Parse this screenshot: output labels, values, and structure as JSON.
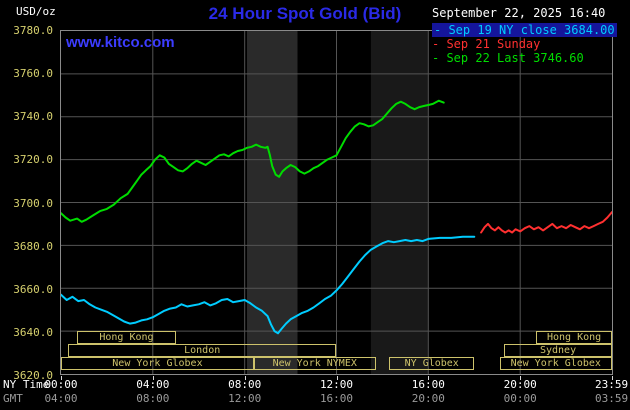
{
  "header": {
    "units_label": "USD/oz",
    "title": "24 Hour Spot Gold (Bid)",
    "datetime": "September 22, 2025 16:40",
    "watermark": "www.kitco.com"
  },
  "colors": {
    "background": "#000000",
    "title_blue": "#2a2ae6",
    "watermark_blue": "#3c3cff",
    "axis_yellow": "#d6d06e",
    "session_yellow": "#cdc26b",
    "grid_gray": "#545454",
    "border_gray": "#8a8a8a",
    "white_text": "#ffffff",
    "gmt_gray": "#9a9a9a",
    "legend_highlight": "#15159b",
    "series_cyan": "#00ccff",
    "series_red": "#ff3030",
    "series_green": "#00dd00"
  },
  "legend": [
    {
      "id": "sep19",
      "label": "Sep 19 NY close 3684.00",
      "color": "#00ccff",
      "highlight": true
    },
    {
      "id": "sep21",
      "label": "Sep 21 Sunday",
      "color": "#ff3030",
      "highlight": false
    },
    {
      "id": "sep22",
      "label": "Sep 22 Last 3746.60",
      "color": "#00dd00",
      "highlight": false
    }
  ],
  "axes": {
    "ny_time_label": "NY Time",
    "gmt_label": "GMT",
    "y_ticks": [
      "3780.0",
      "3760.0",
      "3740.0",
      "3720.0",
      "3700.0",
      "3680.0",
      "3660.0",
      "3640.0",
      "3620.0"
    ],
    "x_ticks": [
      {
        "h": 0,
        "ny": "00:00",
        "gmt": "04:00"
      },
      {
        "h": 4,
        "ny": "04:00",
        "gmt": "08:00"
      },
      {
        "h": 8,
        "ny": "08:00",
        "gmt": "12:00"
      },
      {
        "h": 12,
        "ny": "12:00",
        "gmt": "16:00"
      },
      {
        "h": 16,
        "ny": "16:00",
        "gmt": "20:00"
      },
      {
        "h": 20,
        "ny": "20:00",
        "gmt": "00:00"
      },
      {
        "h": 23.983,
        "ny": "23:59",
        "gmt": "03:59"
      }
    ]
  },
  "sessions": [
    {
      "label": "Hong Kong",
      "row": 0,
      "start": 0.7,
      "end": 5.0
    },
    {
      "label": "Hong Kong",
      "row": 0,
      "start": 20.7,
      "end": 24.0
    },
    {
      "label": "London",
      "row": 1,
      "start": 0.3,
      "end": 12.0
    },
    {
      "label": "Sydney",
      "row": 1,
      "start": 19.3,
      "end": 24.0
    },
    {
      "label": "New York Globex",
      "row": 2,
      "start": 0.0,
      "end": 8.4
    },
    {
      "label": "New York NYMEX",
      "row": 2,
      "start": 8.4,
      "end": 13.7
    },
    {
      "label": "NY Globex",
      "row": 2,
      "start": 14.3,
      "end": 18.0
    },
    {
      "label": "New York Globex",
      "row": 2,
      "start": 19.1,
      "end": 24.0
    }
  ],
  "chart_data": {
    "type": "line",
    "title": "24 Hour Spot Gold (Bid)",
    "xlabel": "NY Time (hours 00:00-23:59)",
    "ylabel": "USD/oz",
    "ylim": [
      3620,
      3780
    ],
    "xlim_hours": [
      0,
      24
    ],
    "grid": {
      "on": true,
      "color": "#545454",
      "y_values": [
        3640,
        3660,
        3680,
        3700,
        3720,
        3740,
        3760
      ],
      "x_hours": [
        4,
        8,
        12,
        16,
        20
      ]
    },
    "bands": [
      {
        "from": 8.1,
        "to": 10.3,
        "color": "#2a2a2a"
      },
      {
        "from": 13.5,
        "to": 16.0,
        "color": "#191919"
      }
    ],
    "series": [
      {
        "id": "sep19-ny-close",
        "name": "Sep 19 NY close 3684.00",
        "color": "#00ccff",
        "close_value": 3684.0,
        "points": [
          [
            0,
            3657
          ],
          [
            0.25,
            3654.5
          ],
          [
            0.5,
            3656
          ],
          [
            0.75,
            3654
          ],
          [
            1,
            3654.5
          ],
          [
            1.25,
            3652.5
          ],
          [
            1.5,
            3651
          ],
          [
            1.75,
            3650
          ],
          [
            2,
            3649
          ],
          [
            2.25,
            3647.5
          ],
          [
            2.5,
            3646
          ],
          [
            2.75,
            3644.5
          ],
          [
            3,
            3643.5
          ],
          [
            3.25,
            3644
          ],
          [
            3.5,
            3645
          ],
          [
            3.75,
            3645.5
          ],
          [
            4,
            3646.5
          ],
          [
            4.25,
            3648
          ],
          [
            4.5,
            3649.5
          ],
          [
            4.75,
            3650.5
          ],
          [
            5,
            3651
          ],
          [
            5.25,
            3652.5
          ],
          [
            5.5,
            3651.5
          ],
          [
            5.75,
            3652
          ],
          [
            6,
            3652.5
          ],
          [
            6.25,
            3653.5
          ],
          [
            6.5,
            3652
          ],
          [
            6.75,
            3653
          ],
          [
            7,
            3654.5
          ],
          [
            7.25,
            3655
          ],
          [
            7.5,
            3653.5
          ],
          [
            7.75,
            3654
          ],
          [
            8,
            3654.5
          ],
          [
            8.25,
            3653
          ],
          [
            8.5,
            3651
          ],
          [
            8.75,
            3649.5
          ],
          [
            9,
            3647
          ],
          [
            9.15,
            3643
          ],
          [
            9.3,
            3640
          ],
          [
            9.45,
            3639
          ],
          [
            9.6,
            3641
          ],
          [
            9.8,
            3643.5
          ],
          [
            10,
            3645.5
          ],
          [
            10.25,
            3647
          ],
          [
            10.5,
            3648.5
          ],
          [
            10.75,
            3649.5
          ],
          [
            11,
            3651
          ],
          [
            11.25,
            3653
          ],
          [
            11.5,
            3655
          ],
          [
            11.75,
            3656.5
          ],
          [
            12,
            3659
          ],
          [
            12.25,
            3662
          ],
          [
            12.5,
            3665.5
          ],
          [
            12.75,
            3669
          ],
          [
            13,
            3672.5
          ],
          [
            13.25,
            3675.5
          ],
          [
            13.5,
            3678
          ],
          [
            13.75,
            3679.5
          ],
          [
            14,
            3681
          ],
          [
            14.25,
            3682
          ],
          [
            14.5,
            3681.5
          ],
          [
            14.75,
            3682
          ],
          [
            15,
            3682.5
          ],
          [
            15.25,
            3682
          ],
          [
            15.5,
            3682.5
          ],
          [
            15.75,
            3682
          ],
          [
            16,
            3683
          ],
          [
            16.5,
            3683.5
          ],
          [
            17,
            3683.5
          ],
          [
            17.5,
            3684
          ],
          [
            18,
            3684
          ]
        ]
      },
      {
        "id": "sep21-sunday",
        "name": "Sep 21 Sunday",
        "color": "#ff3030",
        "points": [
          [
            18.3,
            3686
          ],
          [
            18.45,
            3688.5
          ],
          [
            18.6,
            3690
          ],
          [
            18.75,
            3688
          ],
          [
            18.9,
            3687
          ],
          [
            19.05,
            3688.5
          ],
          [
            19.2,
            3687
          ],
          [
            19.35,
            3686
          ],
          [
            19.5,
            3687
          ],
          [
            19.65,
            3686
          ],
          [
            19.8,
            3687.5
          ],
          [
            20,
            3686.5
          ],
          [
            20.2,
            3688
          ],
          [
            20.4,
            3689
          ],
          [
            20.6,
            3687.5
          ],
          [
            20.8,
            3688.5
          ],
          [
            21,
            3687
          ],
          [
            21.2,
            3688.5
          ],
          [
            21.4,
            3690
          ],
          [
            21.6,
            3688
          ],
          [
            21.8,
            3689
          ],
          [
            22,
            3688
          ],
          [
            22.2,
            3689.5
          ],
          [
            22.4,
            3688.5
          ],
          [
            22.6,
            3687.5
          ],
          [
            22.8,
            3689
          ],
          [
            23,
            3688
          ],
          [
            23.2,
            3689
          ],
          [
            23.4,
            3690
          ],
          [
            23.6,
            3691
          ],
          [
            23.8,
            3693
          ],
          [
            24,
            3695.5
          ]
        ]
      },
      {
        "id": "sep22-last",
        "name": "Sep 22 Last 3746.60",
        "color": "#00dd00",
        "last_value": 3746.6,
        "points": [
          [
            0,
            3695
          ],
          [
            0.2,
            3693
          ],
          [
            0.4,
            3691.5
          ],
          [
            0.7,
            3692.5
          ],
          [
            0.9,
            3691
          ],
          [
            1.1,
            3692
          ],
          [
            1.4,
            3694
          ],
          [
            1.7,
            3696
          ],
          [
            2,
            3697
          ],
          [
            2.3,
            3699
          ],
          [
            2.6,
            3702
          ],
          [
            2.9,
            3704
          ],
          [
            3.1,
            3707
          ],
          [
            3.3,
            3710
          ],
          [
            3.5,
            3713
          ],
          [
            3.7,
            3715
          ],
          [
            3.9,
            3717
          ],
          [
            4.1,
            3720
          ],
          [
            4.3,
            3722
          ],
          [
            4.5,
            3721
          ],
          [
            4.7,
            3718
          ],
          [
            4.9,
            3716.5
          ],
          [
            5.1,
            3715
          ],
          [
            5.3,
            3714.5
          ],
          [
            5.5,
            3716
          ],
          [
            5.7,
            3718
          ],
          [
            5.9,
            3719.5
          ],
          [
            6.1,
            3718.5
          ],
          [
            6.3,
            3717.5
          ],
          [
            6.5,
            3719
          ],
          [
            6.7,
            3720.5
          ],
          [
            6.9,
            3722
          ],
          [
            7.1,
            3722.5
          ],
          [
            7.3,
            3721.5
          ],
          [
            7.5,
            3723
          ],
          [
            7.7,
            3724
          ],
          [
            7.9,
            3724.5
          ],
          [
            8.1,
            3725.5
          ],
          [
            8.3,
            3726
          ],
          [
            8.5,
            3727
          ],
          [
            8.7,
            3726
          ],
          [
            8.9,
            3725.5
          ],
          [
            9,
            3726
          ],
          [
            9.1,
            3722
          ],
          [
            9.2,
            3717
          ],
          [
            9.35,
            3713
          ],
          [
            9.5,
            3712
          ],
          [
            9.65,
            3714.5
          ],
          [
            9.8,
            3716
          ],
          [
            10,
            3717.5
          ],
          [
            10.2,
            3716.5
          ],
          [
            10.4,
            3714.5
          ],
          [
            10.6,
            3713.5
          ],
          [
            10.8,
            3714.5
          ],
          [
            11,
            3716
          ],
          [
            11.2,
            3717
          ],
          [
            11.4,
            3718.5
          ],
          [
            11.6,
            3720
          ],
          [
            11.8,
            3721
          ],
          [
            12,
            3722
          ],
          [
            12.2,
            3726
          ],
          [
            12.4,
            3730
          ],
          [
            12.6,
            3733
          ],
          [
            12.8,
            3735.5
          ],
          [
            13,
            3737
          ],
          [
            13.2,
            3736.5
          ],
          [
            13.4,
            3735.5
          ],
          [
            13.6,
            3736
          ],
          [
            13.8,
            3737.5
          ],
          [
            14,
            3739
          ],
          [
            14.2,
            3741.5
          ],
          [
            14.4,
            3744
          ],
          [
            14.6,
            3746
          ],
          [
            14.8,
            3747
          ],
          [
            15,
            3746
          ],
          [
            15.2,
            3744.5
          ],
          [
            15.4,
            3743.5
          ],
          [
            15.6,
            3744.5
          ],
          [
            15.8,
            3745
          ],
          [
            16,
            3745.5
          ],
          [
            16.2,
            3746
          ],
          [
            16.45,
            3747.5
          ],
          [
            16.67,
            3746.6
          ]
        ]
      }
    ]
  }
}
